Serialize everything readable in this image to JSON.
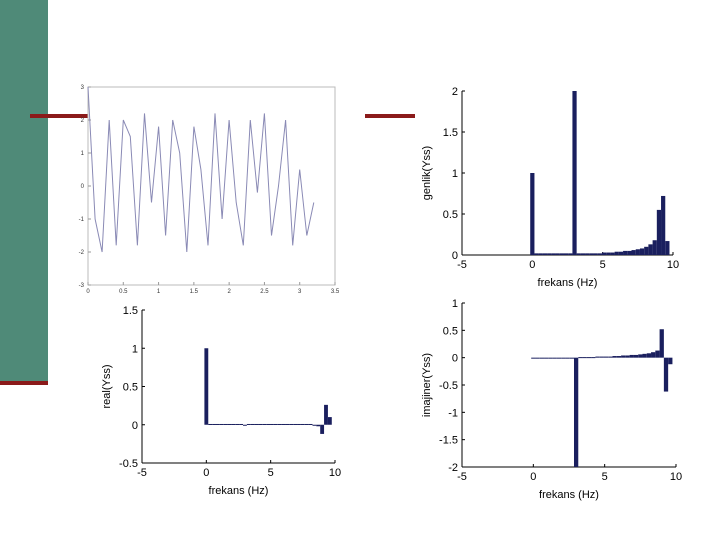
{
  "slide": {
    "band_color": "#4f8a78",
    "rule_color": "#8b1a1a"
  },
  "chart_data": [
    {
      "id": "time-signal",
      "type": "line",
      "xlim": [
        0,
        3.5
      ],
      "ylim": [
        -3,
        3
      ],
      "xticks": [
        "0",
        "0.5",
        "1",
        "1.5",
        "2",
        "2.5",
        "3",
        "3.5"
      ],
      "yticks": [
        "-3",
        "-2",
        "-1",
        "0",
        "1",
        "2",
        "3"
      ],
      "color": "#8a8ab5",
      "x": [
        0,
        0.1,
        0.2,
        0.3,
        0.4,
        0.5,
        0.6,
        0.7,
        0.8,
        0.9,
        1.0,
        1.1,
        1.2,
        1.3,
        1.4,
        1.5,
        1.6,
        1.7,
        1.8,
        1.9,
        2.0,
        2.1,
        2.2,
        2.3,
        2.4,
        2.5,
        2.6,
        2.7,
        2.8,
        2.9,
        3.0,
        3.1,
        3.2
      ],
      "y": [
        3,
        -1,
        -2,
        2,
        -1.8,
        2,
        1.5,
        -1.8,
        2.2,
        -0.5,
        1.8,
        -1.5,
        2,
        1,
        -2,
        1.8,
        0.5,
        -1.8,
        2.2,
        -1,
        2,
        -0.5,
        -1.8,
        2,
        -0.2,
        2.2,
        -1.5,
        0,
        2,
        -1.8,
        0.5,
        -1.5,
        -0.5
      ]
    },
    {
      "id": "amplitude",
      "type": "bar",
      "xlabel": "frekans (Hz)",
      "ylabel": "genlik(Yss)",
      "xlim": [
        -5,
        10
      ],
      "ylim": [
        0,
        2
      ],
      "xticks": [
        "-5",
        "0",
        "5",
        "10"
      ],
      "yticks": [
        "0",
        "0.5",
        "1",
        "1.5",
        "2"
      ],
      "color": "#1a1f5e",
      "x": [
        0,
        0.3,
        0.6,
        0.9,
        1.2,
        1.5,
        1.8,
        2.1,
        2.4,
        2.7,
        3.0,
        3.3,
        3.6,
        3.9,
        4.2,
        4.5,
        4.8,
        5.1,
        5.4,
        5.7,
        6.0,
        6.3,
        6.6,
        6.9,
        7.2,
        7.5,
        7.8,
        8.1,
        8.4,
        8.7,
        9.0,
        9.3,
        9.6
      ],
      "values": [
        1.0,
        0.02,
        0.02,
        0.02,
        0.02,
        0.02,
        0.02,
        0.02,
        0.02,
        0.02,
        2.0,
        0.02,
        0.02,
        0.02,
        0.02,
        0.02,
        0.02,
        0.03,
        0.03,
        0.03,
        0.04,
        0.04,
        0.05,
        0.05,
        0.06,
        0.07,
        0.08,
        0.1,
        0.13,
        0.18,
        0.55,
        0.72,
        0.17
      ]
    },
    {
      "id": "real-part",
      "type": "bar",
      "xlabel": "frekans (Hz)",
      "ylabel": "real(Yss)",
      "xlim": [
        -5,
        10
      ],
      "ylim": [
        -0.5,
        1.5
      ],
      "xticks": [
        "-5",
        "0",
        "5",
        "10"
      ],
      "yticks": [
        "-0.5",
        "0",
        "0.5",
        "1",
        "1.5"
      ],
      "color": "#1a1f5e",
      "x": [
        0,
        0.3,
        0.6,
        0.9,
        1.2,
        1.5,
        1.8,
        2.1,
        2.4,
        2.7,
        3.0,
        3.3,
        3.6,
        3.9,
        4.2,
        4.5,
        4.8,
        5.1,
        5.4,
        5.7,
        6.0,
        6.3,
        6.6,
        6.9,
        7.2,
        7.5,
        7.8,
        8.1,
        8.4,
        8.7,
        9.0,
        9.3,
        9.6
      ],
      "values": [
        1.0,
        0.01,
        0.01,
        0.01,
        0.01,
        0.01,
        0.01,
        0.01,
        0.01,
        0.01,
        0.0,
        0.01,
        0.01,
        0.01,
        0.01,
        0.01,
        0.01,
        0.01,
        0.01,
        0.01,
        0.01,
        0.01,
        0.01,
        0.01,
        0.01,
        0.01,
        0.01,
        0.01,
        0.0,
        -0.02,
        -0.12,
        0.26,
        0.1
      ]
    },
    {
      "id": "imaginary-part",
      "type": "bar",
      "xlabel": "frekans (Hz)",
      "ylabel": "imajiner(Yss)",
      "xlim": [
        -5,
        10
      ],
      "ylim": [
        -2,
        1
      ],
      "xticks": [
        "-5",
        "0",
        "5",
        "10"
      ],
      "yticks": [
        "-2",
        "-1.5",
        "-1",
        "-0.5",
        "0",
        "0.5",
        "1"
      ],
      "color": "#1a1f5e",
      "x": [
        0,
        0.3,
        0.6,
        0.9,
        1.2,
        1.5,
        1.8,
        2.1,
        2.4,
        2.7,
        3.0,
        3.3,
        3.6,
        3.9,
        4.2,
        4.5,
        4.8,
        5.1,
        5.4,
        5.7,
        6.0,
        6.3,
        6.6,
        6.9,
        7.2,
        7.5,
        7.8,
        8.1,
        8.4,
        8.7,
        9.0,
        9.3,
        9.6
      ],
      "values": [
        0.0,
        0.0,
        0.0,
        0.0,
        0.0,
        0.0,
        0.0,
        0.0,
        0.0,
        0.0,
        -2.0,
        0.01,
        0.01,
        0.01,
        0.01,
        0.02,
        0.02,
        0.02,
        0.02,
        0.03,
        0.03,
        0.04,
        0.04,
        0.05,
        0.05,
        0.06,
        0.07,
        0.08,
        0.1,
        0.13,
        0.52,
        -0.62,
        -0.12
      ]
    }
  ]
}
